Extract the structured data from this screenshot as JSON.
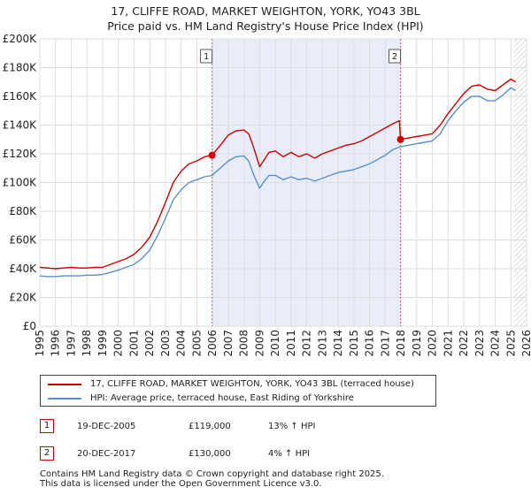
{
  "title_line1": "17, CLIFFE ROAD, MARKET WEIGHTON, YORK, YO43 3BL",
  "title_line2": "Price paid vs. HM Land Registry's House Price Index (HPI)",
  "colors": {
    "price": "#cc0000",
    "hpi": "#5b8fc9",
    "shade": "#e8edf9",
    "vline": "#dd6666",
    "grid": "#dddddd"
  },
  "legend": {
    "price_label": "17, CLIFFE ROAD, MARKET WEIGHTON, YORK, YO43 3BL (terraced house)",
    "hpi_label": "HPI: Average price, terraced house, East Riding of Yorkshire"
  },
  "sales": [
    {
      "num": "1",
      "date": "19-DEC-2005",
      "price": "£119,000",
      "hpi": "13% ↑ HPI"
    },
    {
      "num": "2",
      "date": "20-DEC-2017",
      "price": "£130,000",
      "hpi": "4% ↑ HPI"
    }
  ],
  "footer_line1": "Contains HM Land Registry data © Crown copyright and database right 2025.",
  "footer_line2": "This data is licensed under the Open Government Licence v3.0.",
  "chart_data": {
    "type": "line",
    "title": "17, CLIFFE ROAD, MARKET WEIGHTON, YORK, YO43 3BL",
    "subtitle": "Price paid vs. HM Land Registry's House Price Index (HPI)",
    "xlim": [
      1995,
      2026
    ],
    "ylim": [
      0,
      200000
    ],
    "y_ticks": [
      0,
      20000,
      40000,
      60000,
      80000,
      100000,
      120000,
      140000,
      160000,
      180000,
      200000
    ],
    "y_tick_labels": [
      "£0",
      "£20K",
      "£40K",
      "£60K",
      "£80K",
      "£100K",
      "£120K",
      "£140K",
      "£160K",
      "£180K",
      "£200K"
    ],
    "x_ticks": [
      1995,
      1996,
      1997,
      1998,
      1999,
      2000,
      2001,
      2002,
      2003,
      2004,
      2005,
      2006,
      2007,
      2008,
      2009,
      2010,
      2011,
      2012,
      2013,
      2014,
      2015,
      2016,
      2017,
      2018,
      2019,
      2020,
      2021,
      2022,
      2023,
      2024,
      2025,
      2026
    ],
    "x_tick_labels": [
      "1995",
      "1996",
      "1997",
      "1998",
      "1999",
      "2000",
      "2001",
      "2002",
      "2003",
      "2004",
      "2005",
      "2006",
      "2007",
      "2008",
      "2009",
      "2010",
      "2011",
      "2012",
      "2013",
      "2014",
      "2015",
      "2016",
      "2017",
      "2018",
      "2019",
      "2020",
      "2021",
      "2022",
      "2023",
      "2024",
      "2025",
      "2026"
    ],
    "grid": true,
    "shaded_range": [
      2005.97,
      2017.97
    ],
    "hatched_from": 2025.2,
    "markers": [
      {
        "label": "1",
        "x": 2005.97,
        "y": 119000
      },
      {
        "label": "2",
        "x": 2017.97,
        "y": 130000
      }
    ],
    "series": [
      {
        "name": "17, CLIFFE ROAD, MARKET WEIGHTON, YORK, YO43 3BL (terraced house)",
        "color": "#cc0000",
        "x": [
          1995,
          1995.5,
          1996,
          1996.5,
          1997,
          1997.5,
          1998,
          1998.5,
          1999,
          1999.5,
          2000,
          2000.5,
          2001,
          2001.5,
          2002,
          2002.5,
          2003,
          2003.5,
          2004,
          2004.5,
          2005,
          2005.5,
          2005.97,
          2006.5,
          2007,
          2007.5,
          2008,
          2008.3,
          2008.6,
          2009,
          2009.3,
          2009.6,
          2010,
          2010.5,
          2011,
          2011.5,
          2012,
          2012.5,
          2013,
          2013.5,
          2014,
          2014.5,
          2015,
          2015.5,
          2016,
          2016.5,
          2017,
          2017.5,
          2017.9,
          2017.97,
          2018.5,
          2019,
          2019.5,
          2020,
          2020.5,
          2021,
          2021.5,
          2022,
          2022.5,
          2023,
          2023.5,
          2024,
          2024.5,
          2025,
          2025.3
        ],
        "values": [
          41000,
          40500,
          40000,
          40500,
          41000,
          40500,
          40500,
          41000,
          41000,
          43000,
          45000,
          47000,
          50000,
          55000,
          62000,
          73000,
          86000,
          100000,
          108000,
          113000,
          115000,
          118000,
          119000,
          126000,
          133000,
          136000,
          136500,
          134000,
          125000,
          111000,
          116000,
          121000,
          122000,
          118000,
          121000,
          118000,
          120000,
          117000,
          120000,
          122000,
          124000,
          126000,
          127000,
          129000,
          132000,
          135000,
          138000,
          141000,
          143000,
          130000,
          131000,
          132000,
          133000,
          134000,
          140000,
          148000,
          155000,
          162000,
          167000,
          168000,
          165000,
          164000,
          168000,
          172000,
          170000
        ]
      },
      {
        "name": "HPI: Average price, terraced house, East Riding of Yorkshire",
        "color": "#5b8fc9",
        "x": [
          1995,
          1995.5,
          1996,
          1996.5,
          1997,
          1997.5,
          1998,
          1998.5,
          1999,
          1999.5,
          2000,
          2000.5,
          2001,
          2001.5,
          2002,
          2002.5,
          2003,
          2003.5,
          2004,
          2004.5,
          2005,
          2005.5,
          2005.97,
          2006.5,
          2007,
          2007.5,
          2008,
          2008.3,
          2008.6,
          2009,
          2009.3,
          2009.6,
          2010,
          2010.5,
          2011,
          2011.5,
          2012,
          2012.5,
          2013,
          2013.5,
          2014,
          2014.5,
          2015,
          2015.5,
          2016,
          2016.5,
          2017,
          2017.5,
          2017.97,
          2018.5,
          2019,
          2019.5,
          2020,
          2020.5,
          2021,
          2021.5,
          2022,
          2022.5,
          2023,
          2023.5,
          2024,
          2024.5,
          2025,
          2025.3
        ],
        "values": [
          35000,
          34500,
          34500,
          35000,
          35000,
          35000,
          35500,
          35500,
          36000,
          37500,
          39000,
          41000,
          43000,
          47000,
          53000,
          63000,
          75000,
          88000,
          95000,
          100000,
          102000,
          104000,
          105000,
          110000,
          115000,
          118000,
          118500,
          115000,
          106000,
          96000,
          101000,
          105000,
          105000,
          102000,
          104000,
          102000,
          103000,
          101000,
          103000,
          105000,
          107000,
          108000,
          109000,
          111000,
          113000,
          116000,
          119000,
          123000,
          125000,
          126000,
          127000,
          128000,
          129000,
          134000,
          143000,
          150000,
          156000,
          160000,
          160000,
          157000,
          157000,
          161000,
          166000,
          164000
        ]
      }
    ]
  }
}
